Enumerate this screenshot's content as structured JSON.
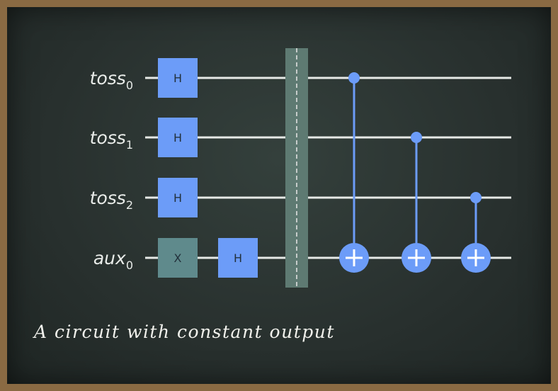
{
  "qubits": [
    {
      "base": "toss",
      "sub": "0"
    },
    {
      "base": "toss",
      "sub": "1"
    },
    {
      "base": "toss",
      "sub": "2"
    },
    {
      "base": "aux",
      "sub": "0"
    }
  ],
  "gates": [
    {
      "label": "H",
      "qubit": 0,
      "column": 0,
      "type": "hadamard"
    },
    {
      "label": "H",
      "qubit": 1,
      "column": 0,
      "type": "hadamard"
    },
    {
      "label": "H",
      "qubit": 2,
      "column": 0,
      "type": "hadamard"
    },
    {
      "label": "X",
      "qubit": 3,
      "column": 0,
      "type": "pauli-x"
    },
    {
      "label": "H",
      "qubit": 3,
      "column": 1,
      "type": "hadamard"
    }
  ],
  "barrier": {
    "after_column": 1
  },
  "cnots": [
    {
      "control": 0,
      "target": 3
    },
    {
      "control": 1,
      "target": 3
    },
    {
      "control": 2,
      "target": 3
    }
  ],
  "colors": {
    "wire": "#e6e9e6",
    "hadamard": "#6c9cf8",
    "pauli_x": "#5f8a8c",
    "cnot": "#6c9cf8",
    "barrier": "#5e7a72"
  },
  "caption": "A circuit with constant output"
}
